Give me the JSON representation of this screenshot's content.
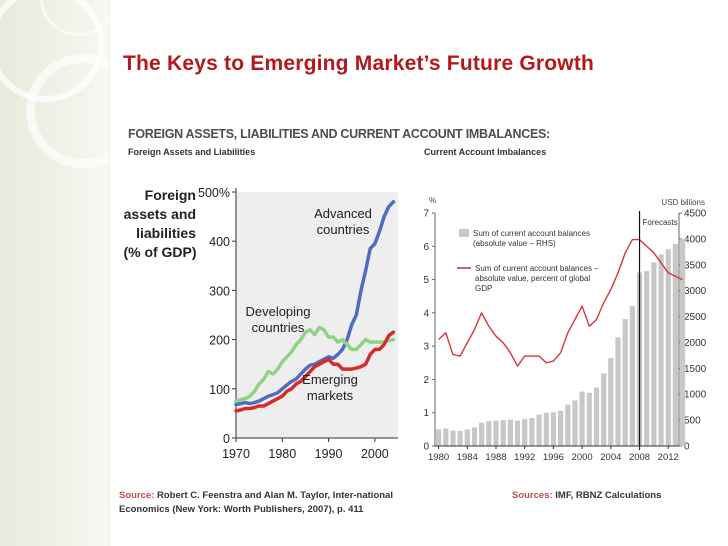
{
  "slide": {
    "title": "The Keys to Emerging Market’s Future Growth",
    "subtitle": "FOREIGN ASSETS, LIABILITIES AND CURRENT ACCOUNT IMBALANCES:",
    "caption_left": "Foreign Assets  and Liabilities",
    "caption_right": "Current  Account  Imbalances",
    "source_left_label": "Source:",
    "source_left_text": "Robert  C.  Feenstra  and Alan  M. Taylor,  Inter-national  Economics  (New York: Worth  Publishers, 2007), p. 411",
    "source_right_label": "Sources:",
    "source_right_text": "IMF, RBNZ  Calculations"
  },
  "colors": {
    "title": "#b3181c",
    "advanced": "#4f6bc4",
    "developing": "#8fd484",
    "emerging": "#d82a2a",
    "bars": "#c8c8c8",
    "ca_line": "#d8343c"
  },
  "chart_data": [
    {
      "type": "line",
      "title": "Foreign assets and liabilities (% of GDP)",
      "title_lines": [
        "Foreign",
        "assets and",
        "liabilities",
        "(% of GDP)"
      ],
      "xlabel": "",
      "ylabel": "% of GDP",
      "xlim": [
        1970,
        2005
      ],
      "ylim": [
        0,
        500
      ],
      "x_ticks": [
        1970,
        1980,
        1990,
        2000
      ],
      "y_ticks": [
        0,
        100,
        200,
        300,
        400,
        500
      ],
      "y_tick_labels": [
        "0",
        "100",
        "200",
        "300",
        "400",
        "500%"
      ],
      "annotations": [
        {
          "lines": [
            "Advanced",
            "countries"
          ],
          "series": "Advanced countries"
        },
        {
          "lines": [
            "Developing",
            "countries"
          ],
          "series": "Developing countries"
        },
        {
          "lines": [
            "Emerging",
            "markets"
          ],
          "series": "Emerging markets"
        }
      ],
      "series": [
        {
          "name": "Advanced countries",
          "color": "#4f6bc4",
          "x": [
            1970,
            1971,
            1972,
            1973,
            1974,
            1975,
            1976,
            1977,
            1978,
            1979,
            1980,
            1981,
            1982,
            1983,
            1984,
            1985,
            1986,
            1987,
            1988,
            1989,
            1990,
            1991,
            1992,
            1993,
            1994,
            1995,
            1996,
            1997,
            1998,
            1999,
            2000,
            2001,
            2002,
            2003,
            2004
          ],
          "y": [
            68,
            70,
            72,
            70,
            72,
            75,
            80,
            85,
            88,
            92,
            100,
            108,
            115,
            120,
            130,
            140,
            148,
            150,
            155,
            160,
            165,
            162,
            170,
            180,
            200,
            230,
            250,
            300,
            340,
            385,
            395,
            420,
            450,
            470,
            480
          ]
        },
        {
          "name": "Developing countries",
          "color": "#8fd484",
          "x": [
            1970,
            1971,
            1972,
            1973,
            1974,
            1975,
            1976,
            1977,
            1978,
            1979,
            1980,
            1981,
            1982,
            1983,
            1984,
            1985,
            1986,
            1987,
            1988,
            1989,
            1990,
            1991,
            1992,
            1993,
            1994,
            1995,
            1996,
            1997,
            1998,
            1999,
            2000,
            2001,
            2002,
            2003,
            2004
          ],
          "y": [
            75,
            78,
            80,
            85,
            95,
            110,
            120,
            135,
            130,
            140,
            155,
            165,
            175,
            190,
            200,
            215,
            220,
            210,
            225,
            220,
            205,
            205,
            195,
            200,
            190,
            180,
            180,
            190,
            200,
            195,
            195,
            195,
            195,
            198,
            200
          ]
        },
        {
          "name": "Emerging markets",
          "color": "#d82a2a",
          "x": [
            1970,
            1971,
            1972,
            1973,
            1974,
            1975,
            1976,
            1977,
            1978,
            1979,
            1980,
            1981,
            1982,
            1983,
            1984,
            1985,
            1986,
            1987,
            1988,
            1989,
            1990,
            1991,
            1992,
            1993,
            1994,
            1995,
            1996,
            1997,
            1998,
            1999,
            2000,
            2001,
            2002,
            2003,
            2004
          ],
          "y": [
            55,
            57,
            60,
            60,
            62,
            65,
            65,
            70,
            75,
            80,
            85,
            95,
            100,
            110,
            115,
            125,
            135,
            145,
            150,
            155,
            160,
            150,
            150,
            140,
            140,
            140,
            142,
            145,
            150,
            170,
            180,
            180,
            190,
            208,
            215
          ]
        }
      ]
    },
    {
      "type": "bar",
      "title": "Current account imbalances",
      "ylabel_left": "%",
      "ylabel_right": "USD billions",
      "xlim": [
        1980,
        2014
      ],
      "x_ticks": [
        1980,
        1984,
        1988,
        1992,
        1996,
        2000,
        2004,
        2008,
        2012
      ],
      "y_left_ticks": [
        0,
        1,
        2,
        3,
        4,
        5,
        6,
        7
      ],
      "y_right_ticks": [
        0,
        500,
        1000,
        1500,
        2000,
        2500,
        3000,
        3500,
        4000,
        4500
      ],
      "ylim_left": [
        0,
        7
      ],
      "ylim_right": [
        0,
        4500
      ],
      "forecast_start": 2008,
      "forecast_label": "Forecasts",
      "legend": [
        "Sum of current account balances (absolute value – RHS)",
        "Sum of current account balances – absolute value, percent of global GDP"
      ],
      "legend_lines_bar": [
        "Sum of current account balances",
        "(absolute value – RHS)"
      ],
      "legend_lines_line": [
        "Sum of current account balances –",
        "absolute value, percent of global",
        "GDP"
      ],
      "years": [
        1980,
        1981,
        1982,
        1983,
        1984,
        1985,
        1986,
        1987,
        1988,
        1989,
        1990,
        1991,
        1992,
        1993,
        1994,
        1995,
        1996,
        1997,
        1998,
        1999,
        2000,
        2001,
        2002,
        2003,
        2004,
        2005,
        2006,
        2007,
        2008,
        2009,
        2010,
        2011,
        2012,
        2013,
        2014
      ],
      "series": [
        {
          "name": "Sum of current account balances (absolute value – RHS)",
          "type": "bar",
          "axis": "right",
          "color": "#c8c8c8",
          "values": [
            320,
            340,
            300,
            290,
            320,
            360,
            450,
            480,
            490,
            500,
            510,
            490,
            520,
            540,
            610,
            640,
            650,
            680,
            800,
            880,
            1050,
            1030,
            1130,
            1400,
            1700,
            2100,
            2450,
            2700,
            3350,
            3380,
            3550,
            3700,
            3800,
            3900,
            4000
          ]
        },
        {
          "name": "Sum of current account balances – absolute value, percent of global GDP",
          "type": "line",
          "axis": "left",
          "color": "#d8343c",
          "values": [
            3.2,
            3.4,
            2.75,
            2.7,
            3.1,
            3.5,
            4.0,
            3.6,
            3.3,
            3.1,
            2.8,
            2.4,
            2.7,
            2.7,
            2.7,
            2.5,
            2.55,
            2.8,
            3.4,
            3.8,
            4.2,
            3.6,
            3.8,
            4.3,
            4.7,
            5.2,
            5.8,
            6.2,
            6.2,
            6.0,
            5.8,
            5.5,
            5.2,
            5.1,
            5.0
          ]
        }
      ]
    }
  ]
}
